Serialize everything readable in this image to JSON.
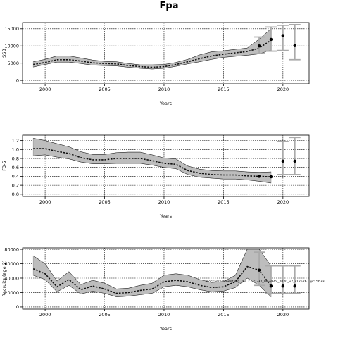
{
  "figure": {
    "title": "Fpa",
    "annotation": "stockassessment.org, (Fe.27.21-32_WGBFAS_2020_v7, r12526 , git: 5b33"
  },
  "chart_data": [
    {
      "type": "line",
      "panel": "ssb",
      "ylabel": "SSB",
      "xlabel": "Years",
      "xlim": [
        1998.1,
        2022.2
      ],
      "ylim": [
        -1000,
        16800
      ],
      "xticks": [
        2000,
        2005,
        2010,
        2015,
        2020
      ],
      "yticks": [
        0,
        5000,
        10000,
        15000
      ],
      "ytick_labels": [
        "0",
        "5000",
        "10000",
        "15000"
      ],
      "grid": true,
      "x": [
        1999,
        2000,
        2001,
        2002,
        2003,
        2004,
        2005,
        2006,
        2007,
        2008,
        2009,
        2010,
        2011,
        2012,
        2013,
        2014,
        2015,
        2016,
        2017,
        2018,
        2019
      ],
      "estimate": [
        4600,
        5200,
        6000,
        6000,
        5600,
        5100,
        4900,
        4800,
        4300,
        4000,
        3800,
        4000,
        4600,
        5400,
        6300,
        7100,
        7600,
        8000,
        8400,
        9400,
        11700
      ],
      "lower": [
        3900,
        4600,
        5300,
        5300,
        4900,
        4400,
        4300,
        4200,
        3800,
        3500,
        3300,
        3500,
        4100,
        4800,
        5400,
        6100,
        6700,
        7000,
        7300,
        7700,
        8800
      ],
      "upper": [
        5400,
        6100,
        7100,
        7100,
        6500,
        5900,
        5500,
        5400,
        4900,
        4500,
        4500,
        4600,
        5200,
        6100,
        7400,
        8300,
        8600,
        9000,
        9400,
        12000,
        15000
      ],
      "points": [
        {
          "x": 2018,
          "y": 10000,
          "lower": 7800,
          "upper": 12600
        },
        {
          "x": 2019,
          "y": 11900,
          "lower": 8500,
          "upper": 15500
        },
        {
          "x": 2020,
          "y": 13000,
          "lower": 8700,
          "upper": 16000
        },
        {
          "x": 2021,
          "y": 10100,
          "lower": 6000,
          "upper": 16200
        }
      ]
    },
    {
      "type": "line",
      "panel": "f",
      "ylabel": "F3-5",
      "xlabel": "Years",
      "xlim": [
        1998.1,
        2022.2
      ],
      "ylim": [
        -0.05,
        1.32
      ],
      "xticks": [
        2000,
        2005,
        2010,
        2015,
        2020
      ],
      "yticks": [
        0.0,
        0.2,
        0.4,
        0.6,
        0.8,
        1.0,
        1.2
      ],
      "ytick_labels": [
        "0.0",
        "0.2",
        "0.4",
        "0.6",
        "0.8",
        "1.0",
        "1.2"
      ],
      "grid": true,
      "x": [
        1999,
        2000,
        2001,
        2002,
        2003,
        2004,
        2005,
        2006,
        2007,
        2008,
        2009,
        2010,
        2011,
        2012,
        2013,
        2014,
        2015,
        2016,
        2017,
        2018,
        2019
      ],
      "estimate": [
        1.02,
        1.02,
        0.96,
        0.91,
        0.82,
        0.77,
        0.77,
        0.8,
        0.8,
        0.8,
        0.75,
        0.69,
        0.67,
        0.53,
        0.47,
        0.44,
        0.43,
        0.43,
        0.41,
        0.4,
        0.39
      ],
      "lower": [
        0.86,
        0.88,
        0.83,
        0.79,
        0.72,
        0.68,
        0.68,
        0.69,
        0.69,
        0.69,
        0.65,
        0.6,
        0.57,
        0.44,
        0.38,
        0.36,
        0.34,
        0.34,
        0.32,
        0.29,
        0.25
      ],
      "upper": [
        1.25,
        1.2,
        1.13,
        1.06,
        0.95,
        0.89,
        0.89,
        0.93,
        0.94,
        0.94,
        0.88,
        0.81,
        0.79,
        0.63,
        0.56,
        0.53,
        0.52,
        0.52,
        0.5,
        0.49,
        0.5
      ],
      "points": [
        {
          "x": 2018,
          "y": 0.4,
          "lower": null,
          "upper": null
        },
        {
          "x": 2019,
          "y": 0.39,
          "lower": null,
          "upper": null
        },
        {
          "x": 2020,
          "y": 0.74,
          "lower": 0.44,
          "upper": 1.18
        },
        {
          "x": 2021,
          "y": 0.74,
          "lower": 0.44,
          "upper": 1.27
        }
      ]
    },
    {
      "type": "line",
      "panel": "recruits",
      "ylabel": "Recruits (age 2)",
      "xlabel": "Years",
      "xlim": [
        1998.1,
        2022.2
      ],
      "ylim": [
        -3000,
        82000
      ],
      "xticks": [
        2000,
        2005,
        2010,
        2015,
        2020
      ],
      "yticks": [
        0,
        20000,
        40000,
        60000,
        80000
      ],
      "ytick_labels": [
        "0",
        "20000",
        "40000",
        "60000",
        "80000"
      ],
      "grid": true,
      "x": [
        1999,
        2000,
        2001,
        2002,
        2003,
        2004,
        2005,
        2006,
        2007,
        2008,
        2009,
        2010,
        2011,
        2012,
        2013,
        2014,
        2015,
        2016,
        2017,
        2018,
        2019
      ],
      "estimate": [
        53000,
        46000,
        28000,
        38000,
        24000,
        29000,
        25000,
        19000,
        20000,
        23000,
        25000,
        35000,
        37000,
        35000,
        30000,
        27000,
        28000,
        35000,
        56000,
        51000,
        29000
      ],
      "lower": [
        44000,
        38000,
        21000,
        30000,
        18000,
        22000,
        19000,
        14000,
        15000,
        17000,
        19000,
        28000,
        30000,
        28000,
        24000,
        21000,
        22000,
        27000,
        40000,
        30000,
        14000
      ],
      "upper": [
        71000,
        60000,
        36000,
        49000,
        31000,
        37000,
        33000,
        25000,
        26000,
        30000,
        33000,
        44000,
        46000,
        44000,
        38000,
        34000,
        35000,
        44000,
        80000,
        80000,
        57000
      ],
      "points": [
        {
          "x": 2018,
          "y": 51000,
          "lower": 30000,
          "upper": 76000
        },
        {
          "x": 2019,
          "y": 29000,
          "lower": 19000,
          "upper": 57000
        },
        {
          "x": 2020,
          "y": 29000,
          "lower": 19000,
          "upper": 57000
        },
        {
          "x": 2021,
          "y": 29000,
          "lower": 19000,
          "upper": 57000
        }
      ]
    }
  ]
}
